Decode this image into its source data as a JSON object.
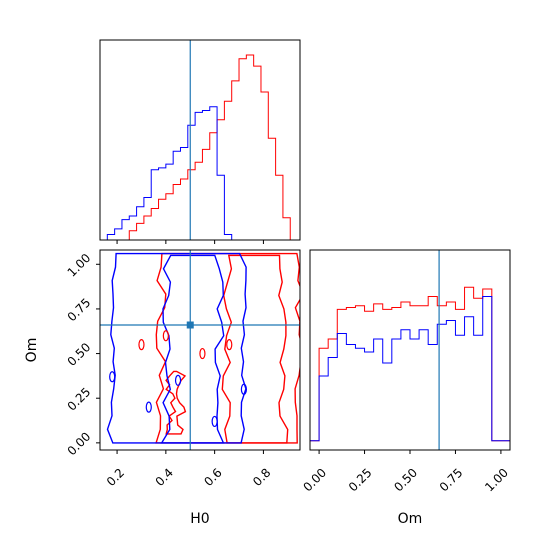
{
  "colors": {
    "series_a": "#ff0000",
    "series_b": "#0000ff",
    "truth": "#1f77b4",
    "frame": "#000000"
  },
  "chart_data": [
    {
      "type": "histogram",
      "panel": "H0 marginal",
      "x_range": [
        0.13,
        0.95
      ],
      "bin_edges": [
        0.13,
        0.16,
        0.19,
        0.22,
        0.25,
        0.28,
        0.31,
        0.34,
        0.37,
        0.4,
        0.43,
        0.46,
        0.49,
        0.52,
        0.55,
        0.58,
        0.61,
        0.64,
        0.67,
        0.7,
        0.73,
        0.76,
        0.79,
        0.82,
        0.85,
        0.88,
        0.91,
        0.95
      ],
      "y_range": [
        0,
        1.0
      ],
      "series": [
        {
          "color": "red",
          "counts": [
            0,
            0,
            0,
            0,
            0.05,
            0.09,
            0.13,
            0.17,
            0.22,
            0.25,
            0.3,
            0.33,
            0.38,
            0.42,
            0.49,
            0.58,
            0.65,
            0.75,
            0.86,
            0.98,
            1.0,
            0.94,
            0.8,
            0.55,
            0.35,
            0.12
          ]
        },
        {
          "color": "blue",
          "counts": [
            0,
            0.03,
            0.06,
            0.11,
            0.13,
            0.18,
            0.23,
            0.38,
            0.39,
            0.41,
            0.48,
            0.5,
            0.62,
            0.69,
            0.7,
            0.72,
            0.35,
            0.03,
            0,
            0,
            0,
            0,
            0,
            0,
            0,
            0
          ]
        }
      ],
      "truth_x": 0.5,
      "xticks": [
        0.2,
        0.4,
        0.6,
        0.8
      ]
    },
    {
      "type": "contour",
      "panel": "H0 vs Om",
      "xlabel": "H0",
      "ylabel": "Om",
      "x_range": [
        0.13,
        0.95
      ],
      "y_range": [
        -0.04,
        1.08
      ],
      "xtick_labels": [
        "0.2",
        "0.4",
        "0.6",
        "0.8"
      ],
      "ytick_labels": [
        "0.00",
        "0.25",
        "0.50",
        "0.75",
        "1.00"
      ],
      "truth": {
        "x": 0.5,
        "y": 0.66
      },
      "series": [
        {
          "color": "red",
          "levels": [
            {
              "x_bands": [
                [
                  0.38,
                  0.95
                ]
              ],
              "y_extent": [
                0.0,
                1.06
              ]
            },
            {
              "x_bands": [
                [
                  0.65,
                  0.88
                ]
              ],
              "y_extent": [
                0.0,
                1.05
              ]
            },
            {
              "x_bands": [
                [
                  0.42,
                  0.46
                ]
              ],
              "y_extent": [
                0.05,
                0.4
              ]
            }
          ]
        },
        {
          "color": "blue",
          "levels": [
            {
              "x_bands": [
                [
                  0.18,
                  0.72
                ]
              ],
              "y_extent": [
                0.0,
                1.06
              ]
            },
            {
              "x_bands": [
                [
                  0.4,
                  0.62
                ]
              ],
              "y_extent": [
                0.0,
                1.05
              ]
            }
          ]
        }
      ]
    },
    {
      "type": "histogram",
      "panel": "Om marginal",
      "xlabel": "Om",
      "x_range": [
        -0.05,
        1.05
      ],
      "bin_edges": [
        -0.05,
        0.0,
        0.05,
        0.1,
        0.15,
        0.2,
        0.25,
        0.3,
        0.35,
        0.4,
        0.45,
        0.5,
        0.55,
        0.6,
        0.65,
        0.7,
        0.75,
        0.8,
        0.85,
        0.9,
        0.95,
        1.0,
        1.05
      ],
      "y_range": [
        0,
        1.0
      ],
      "series": [
        {
          "color": "red",
          "counts": [
            0.05,
            0.55,
            0.6,
            0.76,
            0.77,
            0.78,
            0.75,
            0.79,
            0.76,
            0.77,
            0.8,
            0.78,
            0.78,
            0.83,
            0.78,
            0.8,
            0.76,
            0.88,
            0.82,
            0.87,
            0.05,
            0.05
          ]
        },
        {
          "color": "blue",
          "counts": [
            0.05,
            0.4,
            0.5,
            0.63,
            0.57,
            0.55,
            0.53,
            0.6,
            0.47,
            0.6,
            0.65,
            0.6,
            0.65,
            0.57,
            0.68,
            0.7,
            0.62,
            0.72,
            0.62,
            0.83,
            0.05,
            0.05
          ]
        }
      ],
      "truth_x": 0.66,
      "xtick_labels": [
        "0.00",
        "0.25",
        "0.50",
        "0.75",
        "1.00"
      ],
      "xticks": [
        0.0,
        0.25,
        0.5,
        0.75,
        1.0
      ]
    }
  ]
}
